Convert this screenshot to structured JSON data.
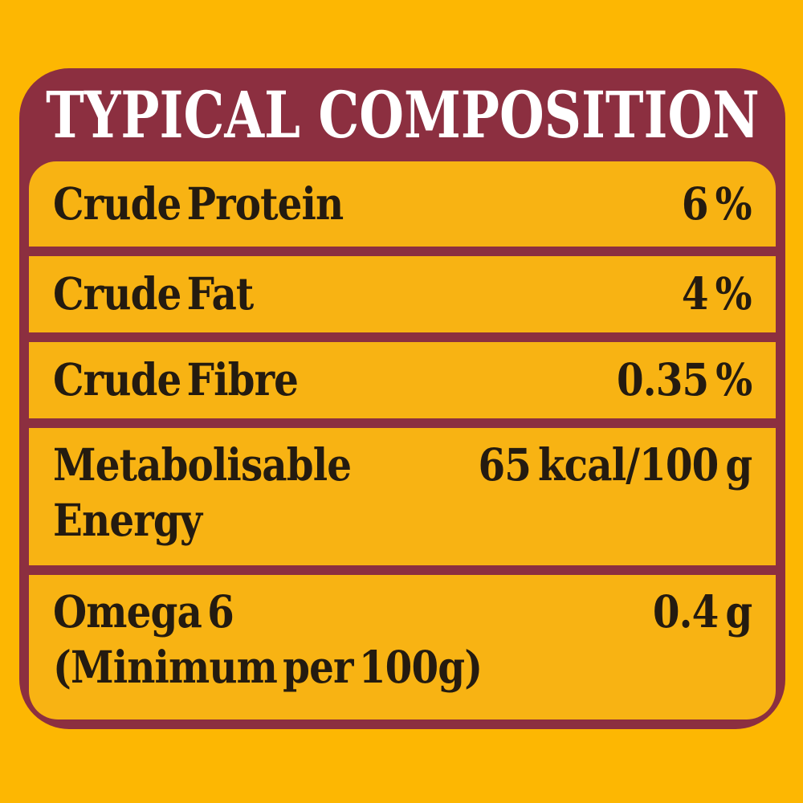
{
  "title": "TYPICAL COMPOSITION",
  "colors": {
    "background_yellow": "#FDB702",
    "panel_maroon": "#8C2F40",
    "row_yellow": "#F8B313",
    "text_dark": "#241B10",
    "title_white": "#FFFFFF"
  },
  "table": {
    "rows": [
      {
        "label": "Crude Protein",
        "value": "6 %"
      },
      {
        "label": "Crude Fat",
        "value": "4 %"
      },
      {
        "label": "Crude Fibre",
        "value": "0.35 %"
      },
      {
        "label": "Metabolisable Energy",
        "value": "65 kcal/100 g"
      },
      {
        "label": "Omega 6",
        "sublabel": "(Minimum per 100g)",
        "value": "0.4 g"
      }
    ]
  }
}
